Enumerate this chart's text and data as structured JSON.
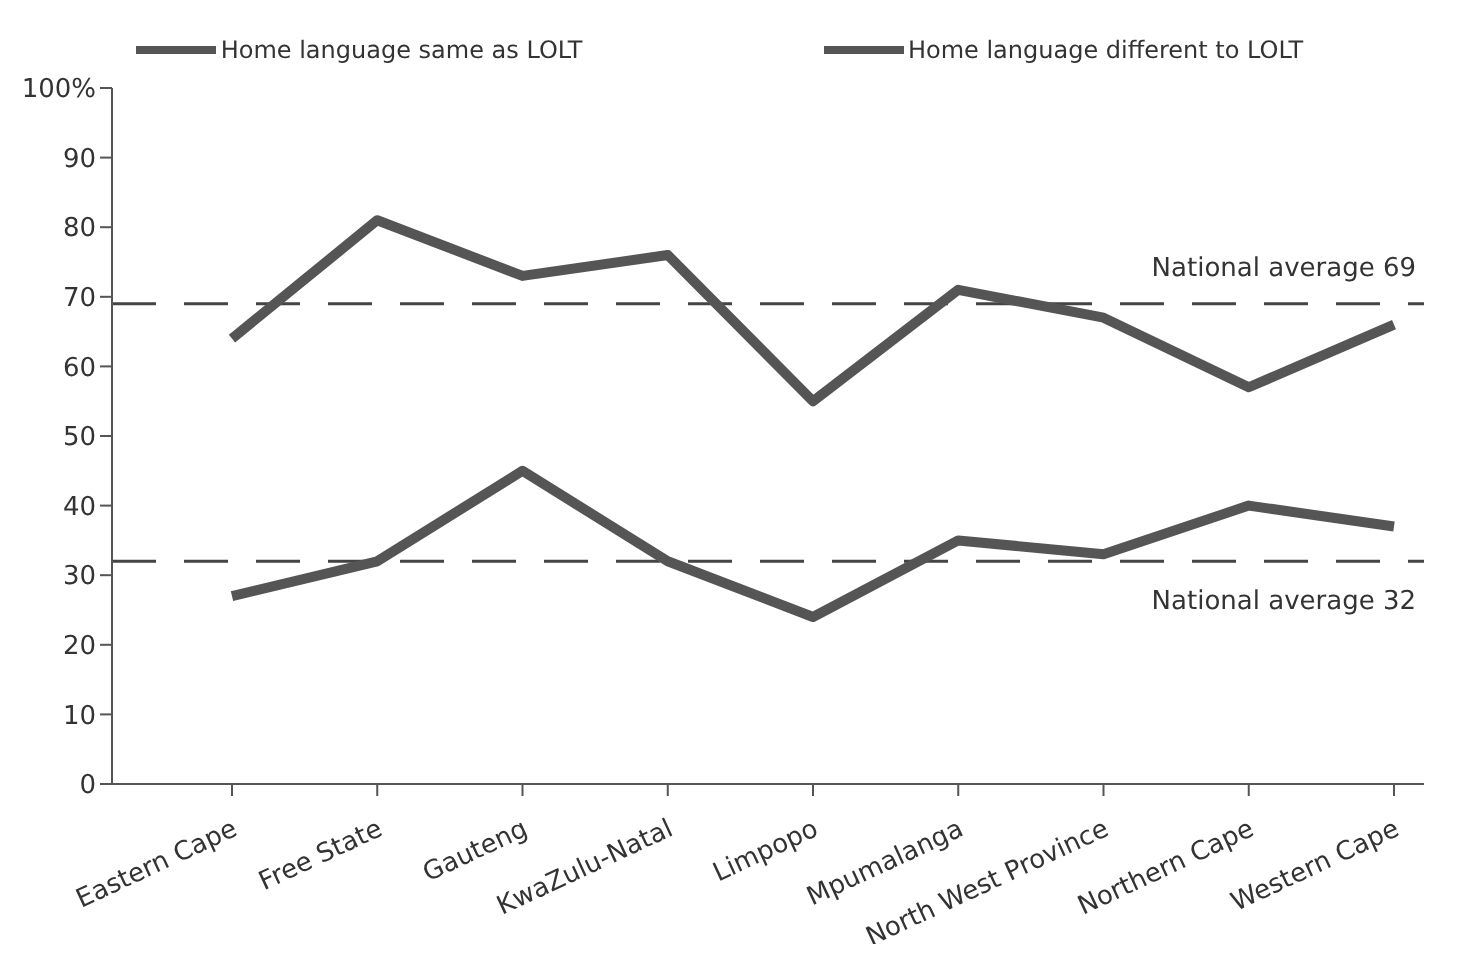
{
  "chart_data": {
    "type": "line",
    "categories": [
      "Eastern Cape",
      "Free State",
      "Gauteng",
      "KwaZulu-Natal",
      "Limpopo",
      "Mpumalanga",
      "North West Province",
      "Northern Cape",
      "Western Cape"
    ],
    "series": [
      {
        "name": "Home language same as LOLT",
        "color": "#555555",
        "values": [
          64,
          81,
          73,
          76,
          55,
          71,
          67,
          57,
          66
        ]
      },
      {
        "name": "Home language different to LOLT",
        "color": "#555555",
        "values": [
          27,
          32,
          45,
          32,
          24,
          35,
          33,
          40,
          37
        ]
      }
    ],
    "ylim": [
      0,
      100
    ],
    "yticks": [
      0,
      10,
      20,
      30,
      40,
      50,
      60,
      70,
      80,
      90,
      {
        "value": 100,
        "label": "100%"
      }
    ],
    "ref_lines": [
      {
        "axis": "y",
        "value": 69,
        "label": "National average 69",
        "color": "#444444",
        "line_style": "dashed"
      },
      {
        "axis": "y",
        "value": 32,
        "label": "National average 32",
        "color": "#444444",
        "line_style": "dashed"
      }
    ],
    "legend": "top",
    "grid": false,
    "marker": "none",
    "line_style": "solid"
  }
}
